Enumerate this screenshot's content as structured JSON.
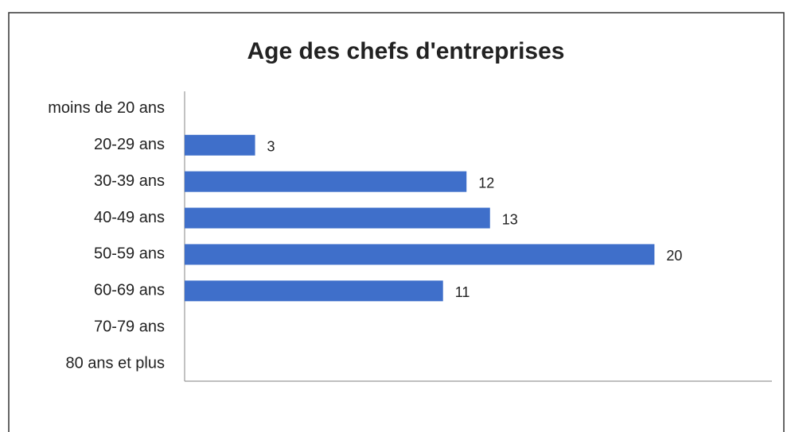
{
  "chart_data": {
    "type": "barh",
    "title": "Age des chefs d'entreprises",
    "categories": [
      "moins de 20 ans",
      "20-29 ans",
      "30-39 ans",
      "40-49 ans",
      "50-59 ans",
      "60-69 ans",
      "70-79 ans",
      "80 ans et plus"
    ],
    "values": [
      null,
      3,
      12,
      13,
      20,
      11,
      null,
      null
    ],
    "color": "#3f6fca",
    "xlim": [
      0,
      25
    ]
  }
}
